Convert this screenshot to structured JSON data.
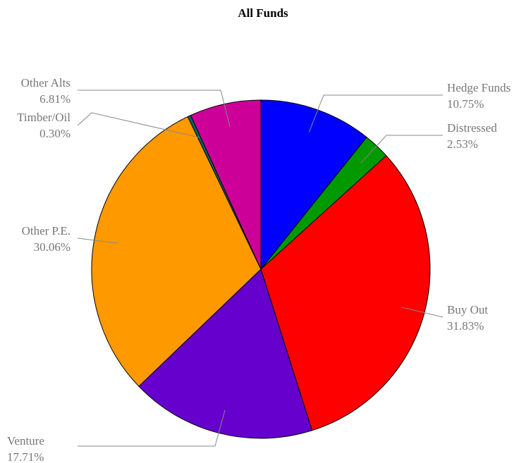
{
  "chart_data": {
    "type": "pie",
    "title": "All Funds",
    "categories": [
      "Hedge Funds",
      "Distressed",
      "Buy Out",
      "Venture",
      "Other P.E.",
      "Timber/Oil",
      "Other Alts"
    ],
    "values": [
      10.75,
      2.53,
      31.83,
      17.71,
      30.06,
      0.3,
      6.81
    ],
    "value_labels": [
      "10.75%",
      "2.53%",
      "31.83%",
      "17.71%",
      "30.06%",
      "0.30%",
      "6.81%"
    ],
    "colors": [
      "#0000ff",
      "#009900",
      "#ff0000",
      "#6600cc",
      "#ff9900",
      "#006666",
      "#cc0099"
    ]
  }
}
